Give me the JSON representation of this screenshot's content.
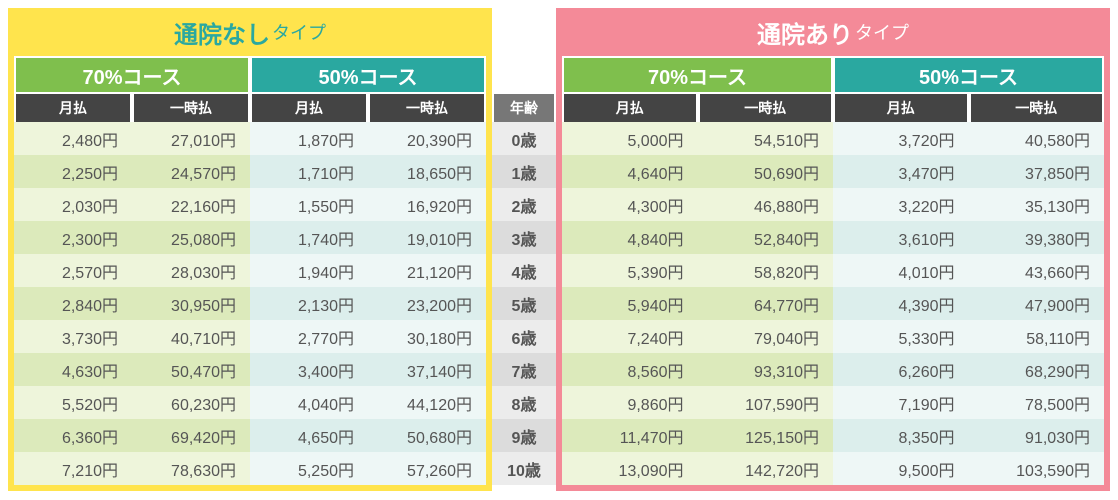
{
  "left": {
    "title_main": "通院なし",
    "title_suffix": "タイプ",
    "accent": "#ffe44d",
    "courses": [
      {
        "label": "70%コース",
        "bg": "#7fbf4d"
      },
      {
        "label": "50%コース",
        "bg": "#2aa8a0"
      }
    ],
    "subheads": [
      "月払",
      "一時払",
      "月払",
      "一時払"
    ]
  },
  "mid": {
    "age_head": "年齢",
    "ages": [
      "0歳",
      "1歳",
      "2歳",
      "3歳",
      "4歳",
      "5歳",
      "6歳",
      "7歳",
      "8歳",
      "9歳",
      "10歳"
    ]
  },
  "right": {
    "title_main": "通院あり",
    "title_suffix": "タイプ",
    "accent": "#f48a98",
    "courses": [
      {
        "label": "70%コース",
        "bg": "#7fbf4d"
      },
      {
        "label": "50%コース",
        "bg": "#2aa8a0"
      }
    ],
    "subheads": [
      "月払",
      "一時払",
      "月払",
      "一時払"
    ]
  },
  "rows_left": [
    [
      "2,480円",
      "27,010円",
      "1,870円",
      "20,390円"
    ],
    [
      "2,250円",
      "24,570円",
      "1,710円",
      "18,650円"
    ],
    [
      "2,030円",
      "22,160円",
      "1,550円",
      "16,920円"
    ],
    [
      "2,300円",
      "25,080円",
      "1,740円",
      "19,010円"
    ],
    [
      "2,570円",
      "28,030円",
      "1,940円",
      "21,120円"
    ],
    [
      "2,840円",
      "30,950円",
      "2,130円",
      "23,200円"
    ],
    [
      "3,730円",
      "40,710円",
      "2,770円",
      "30,180円"
    ],
    [
      "4,630円",
      "50,470円",
      "3,400円",
      "37,140円"
    ],
    [
      "5,520円",
      "60,230円",
      "4,040円",
      "44,120円"
    ],
    [
      "6,360円",
      "69,420円",
      "4,650円",
      "50,680円"
    ],
    [
      "7,210円",
      "78,630円",
      "5,250円",
      "57,260円"
    ]
  ],
  "rows_right": [
    [
      "5,000円",
      "54,510円",
      "3,720円",
      "40,580円"
    ],
    [
      "4,640円",
      "50,690円",
      "3,470円",
      "37,850円"
    ],
    [
      "4,300円",
      "46,880円",
      "3,220円",
      "35,130円"
    ],
    [
      "4,840円",
      "52,840円",
      "3,610円",
      "39,380円"
    ],
    [
      "5,390円",
      "58,820円",
      "4,010円",
      "43,660円"
    ],
    [
      "5,940円",
      "64,770円",
      "4,390円",
      "47,900円"
    ],
    [
      "7,240円",
      "79,040円",
      "5,330円",
      "58,110円"
    ],
    [
      "8,560円",
      "93,310円",
      "6,260円",
      "68,290円"
    ],
    [
      "9,860円",
      "107,590円",
      "7,190円",
      "78,500円"
    ],
    [
      "11,470円",
      "125,150円",
      "8,350円",
      "91,030円"
    ],
    [
      "13,090円",
      "142,720円",
      "9,500円",
      "103,590円"
    ]
  ],
  "style": {
    "row_bg_70_even": "#eef5db",
    "row_bg_70_odd": "#dceabb",
    "row_bg_50_even": "#eef7f6",
    "row_bg_50_odd": "#dceeec",
    "age_bg_even": "#ececec",
    "age_bg_odd": "#dcdcdc",
    "text_color": "#555555",
    "subhead_bg": "#444444",
    "age_head_bg": "#777777"
  }
}
